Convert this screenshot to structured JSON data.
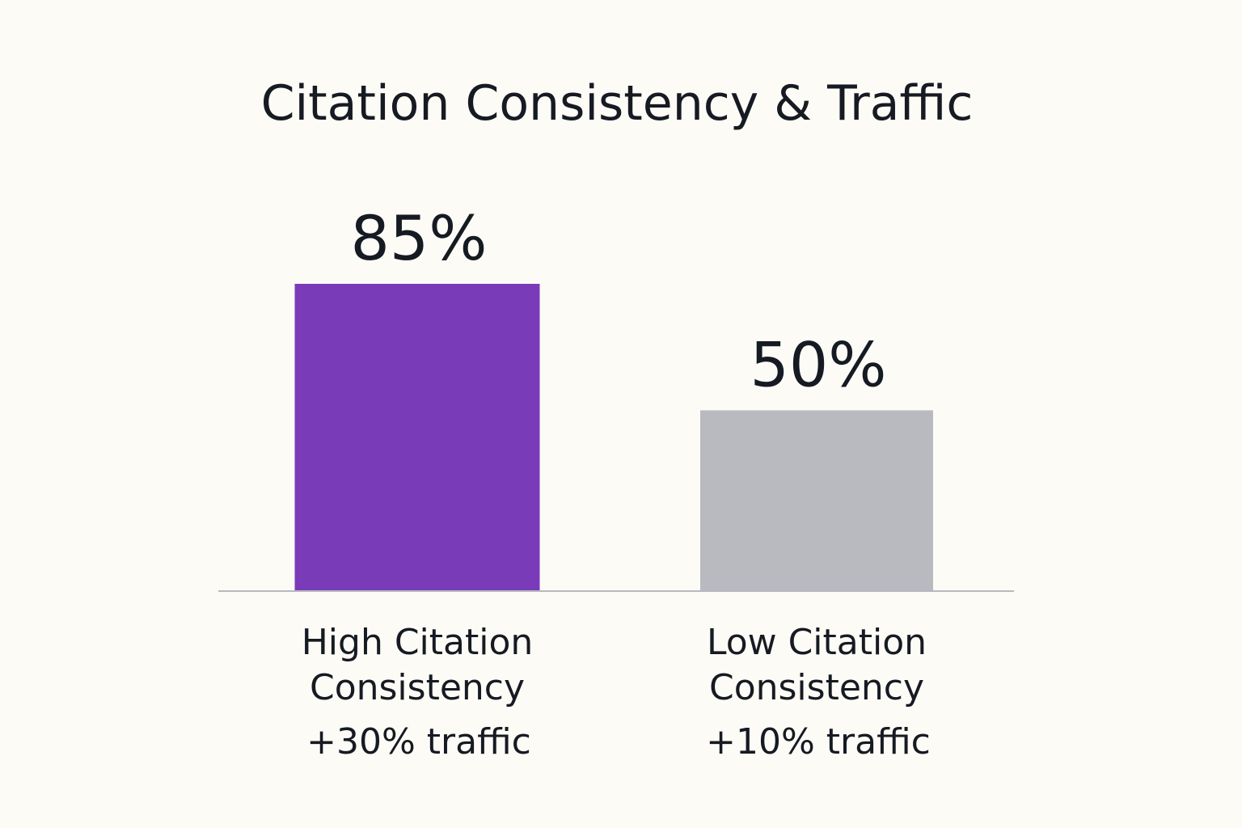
{
  "chart_data": {
    "type": "bar",
    "title": "Citation Consistency & Traffic",
    "xlabel": "",
    "ylabel": "",
    "ylim": [
      0,
      100
    ],
    "grid": false,
    "categories": [
      [
        "High Citation",
        "Consistency"
      ],
      [
        "Low Citation",
        "Consistency"
      ]
    ],
    "values": [
      85,
      50
    ],
    "value_labels": [
      "85%",
      "50%"
    ],
    "annotations": [
      "+30% traffic",
      "+10% traffic"
    ],
    "colors": [
      "#7a3bb8",
      "#b9babf"
    ]
  }
}
